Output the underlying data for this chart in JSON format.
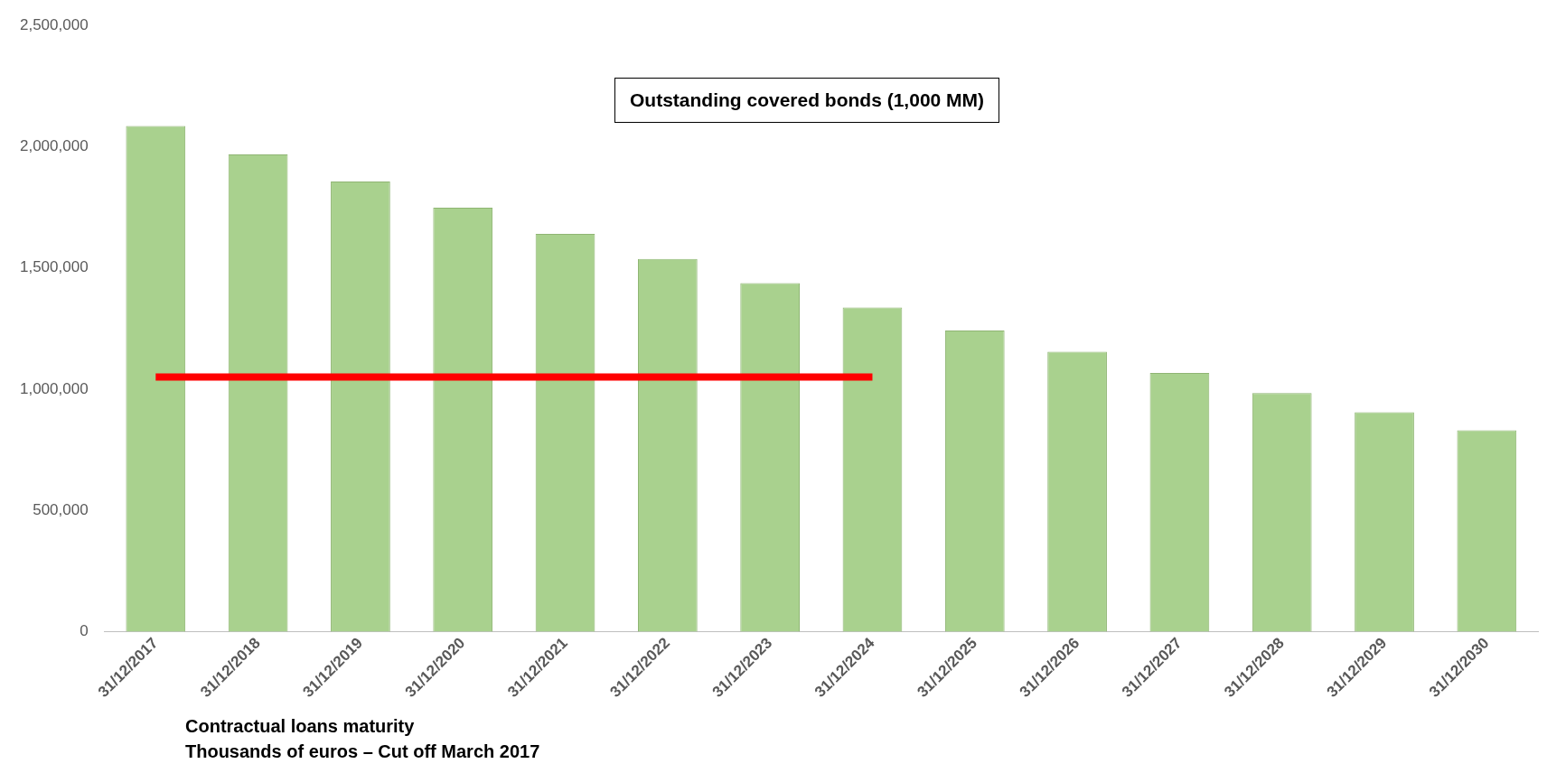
{
  "chart_data": {
    "type": "bar",
    "categories": [
      "31/12/2017",
      "31/12/2018",
      "31/12/2019",
      "31/12/2020",
      "31/12/2021",
      "31/12/2022",
      "31/12/2023",
      "31/12/2024",
      "31/12/2025",
      "31/12/2026",
      "31/12/2027",
      "31/12/2028",
      "31/12/2029",
      "31/12/2030"
    ],
    "series": [
      {
        "color": "#a9d18e",
        "values": [
          2085000,
          1968000,
          1856000,
          1748000,
          1640000,
          1537000,
          1437000,
          1337000,
          1242000,
          1154000,
          1067000,
          984000,
          905000,
          830000
        ]
      },
      {
        "type": "line",
        "name": "Outstanding covered bonds (1,000 MM)",
        "color": "#ff0000",
        "values": [
          1050000,
          1050000,
          1050000,
          1050000,
          1050000,
          1050000,
          1050000,
          1050000,
          null,
          null,
          null,
          null,
          null,
          null
        ]
      }
    ],
    "ylim": [
      0,
      2500000
    ],
    "yticks": [
      0,
      {
        "value": 500000,
        "label": "500,000"
      },
      {
        "value": 1000000,
        "label": "1,000,000"
      },
      {
        "value": 1500000,
        "label": "1,500,000"
      },
      {
        "value": 2000000,
        "label": "2,000,000"
      },
      {
        "value": 2500000,
        "label": "2,500,000"
      }
    ],
    "grid": false,
    "legend": "top",
    "marker": "none",
    "annotations": [
      "Contractual loans maturity",
      "Thousands of euros – Cut off March 2017"
    ]
  }
}
